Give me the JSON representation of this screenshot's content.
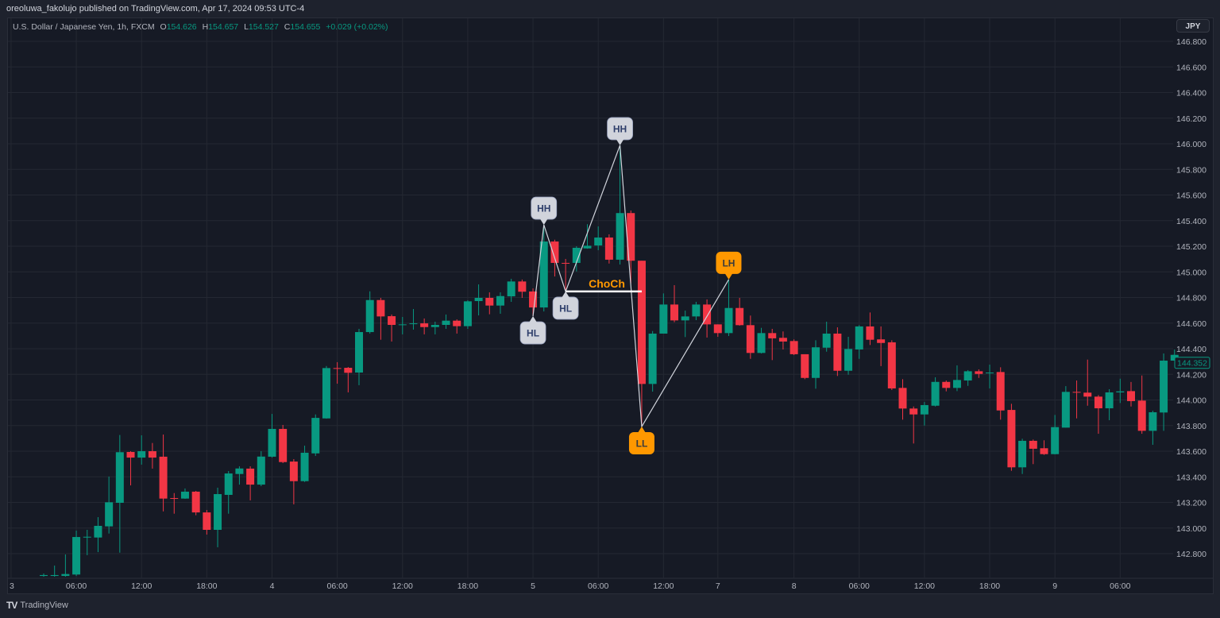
{
  "header": {
    "published": "oreoluwa_fakolujo published on TradingView.com, Apr 17, 2024 09:53 UTC-4"
  },
  "legend": {
    "symbol": "U.S. Dollar / Japanese Yen, 1h, FXCM",
    "open_label": "O",
    "open": "154.626",
    "high_label": "H",
    "high": "154.657",
    "low_label": "L",
    "low": "154.527",
    "close_label": "C",
    "close": "154.655",
    "change": "+0.029 (+0.02%)"
  },
  "currency_button": "JPY",
  "footer": {
    "brand": "TradingView",
    "logo_icon": "tradingview-logo-icon"
  },
  "colors": {
    "up": "#089981",
    "down": "#f23645",
    "label_light": "#d1d4dc",
    "label_orange": "#ff9800",
    "background": "#161a25"
  },
  "chart_data": {
    "type": "candlestick",
    "price_axis": {
      "min": 142.8,
      "max": 146.8,
      "step": 0.2,
      "ticks": [
        "146.800",
        "146.600",
        "146.400",
        "146.200",
        "146.000",
        "145.800",
        "145.600",
        "145.400",
        "145.200",
        "145.000",
        "144.800",
        "144.600",
        "144.400",
        "144.200",
        "144.000",
        "143.800",
        "143.600",
        "143.400",
        "143.200",
        "143.000",
        "142.800"
      ]
    },
    "last_price": "144.352",
    "time_labels": [
      {
        "label": "3",
        "index": -3
      },
      {
        "label": "06:00",
        "index": 3
      },
      {
        "label": "12:00",
        "index": 9
      },
      {
        "label": "18:00",
        "index": 15
      },
      {
        "label": "4",
        "index": 21
      },
      {
        "label": "06:00",
        "index": 27
      },
      {
        "label": "12:00",
        "index": 33
      },
      {
        "label": "18:00",
        "index": 39
      },
      {
        "label": "5",
        "index": 45
      },
      {
        "label": "06:00",
        "index": 51
      },
      {
        "label": "12:00",
        "index": 57
      },
      {
        "label": "7",
        "index": 62
      },
      {
        "label": "8",
        "index": 69
      },
      {
        "label": "06:00",
        "index": 75
      },
      {
        "label": "12:00",
        "index": 81
      },
      {
        "label": "18:00",
        "index": 87
      },
      {
        "label": "9",
        "index": 93
      },
      {
        "label": "06:00",
        "index": 99
      }
    ],
    "grid": true,
    "candles_ohlc": [
      [
        142.626,
        142.645,
        142.62,
        142.633
      ],
      [
        142.626,
        142.707,
        142.62,
        142.633
      ],
      [
        142.626,
        142.794,
        142.62,
        142.641
      ],
      [
        142.637,
        142.98,
        142.626,
        142.93
      ],
      [
        142.93,
        142.986,
        142.788,
        142.932
      ],
      [
        142.926,
        143.085,
        142.812,
        143.017
      ],
      [
        143.013,
        143.402,
        142.957,
        143.201
      ],
      [
        143.197,
        143.726,
        142.808,
        143.592
      ],
      [
        143.594,
        143.6,
        143.333,
        143.55
      ],
      [
        143.55,
        143.724,
        143.495,
        143.6
      ],
      [
        143.6,
        143.664,
        143.464,
        143.55
      ],
      [
        143.557,
        143.73,
        143.13,
        143.23
      ],
      [
        143.234,
        143.273,
        143.112,
        143.228
      ],
      [
        143.23,
        143.309,
        143.228,
        143.284
      ],
      [
        143.284,
        143.29,
        143.1,
        143.122
      ],
      [
        143.122,
        143.141,
        142.949,
        142.986
      ],
      [
        142.986,
        143.315,
        142.85,
        143.265
      ],
      [
        143.259,
        143.445,
        143.112,
        143.426
      ],
      [
        143.422,
        143.482,
        143.339,
        143.465
      ],
      [
        143.464,
        143.482,
        143.216,
        143.339
      ],
      [
        143.339,
        143.6,
        143.327,
        143.558
      ],
      [
        143.557,
        143.891,
        143.55,
        143.774
      ],
      [
        143.774,
        143.805,
        143.507,
        143.515
      ],
      [
        143.519,
        143.538,
        143.185,
        143.366
      ],
      [
        143.366,
        143.643,
        143.36,
        143.588
      ],
      [
        143.583,
        143.887,
        143.563,
        143.86
      ],
      [
        143.856,
        144.265,
        143.854,
        144.249
      ],
      [
        144.249,
        144.295,
        144.127,
        144.247
      ],
      [
        144.251,
        144.257,
        144.059,
        144.212
      ],
      [
        144.214,
        144.555,
        144.115,
        144.53
      ],
      [
        144.53,
        144.848,
        144.518,
        144.78
      ],
      [
        144.78,
        144.797,
        144.47,
        144.652
      ],
      [
        144.654,
        144.667,
        144.456,
        144.586
      ],
      [
        144.586,
        144.648,
        144.512,
        144.59
      ],
      [
        144.597,
        144.71,
        144.549,
        144.598
      ],
      [
        144.598,
        144.636,
        144.512,
        144.569
      ],
      [
        144.569,
        144.611,
        144.512,
        144.586
      ],
      [
        144.586,
        144.667,
        144.555,
        144.619
      ],
      [
        144.619,
        144.629,
        144.518,
        144.576
      ],
      [
        144.576,
        144.778,
        144.555,
        144.77
      ],
      [
        144.772,
        144.902,
        144.66,
        144.797
      ],
      [
        144.797,
        144.84,
        144.669,
        144.737
      ],
      [
        144.737,
        144.84,
        144.673,
        144.811
      ],
      [
        144.809,
        144.946,
        144.766,
        144.925
      ],
      [
        144.925,
        144.94,
        144.797,
        144.845
      ],
      [
        144.847,
        144.871,
        144.654,
        144.722
      ],
      [
        144.722,
        145.367,
        144.691,
        145.237
      ],
      [
        145.237,
        145.251,
        144.964,
        145.07
      ],
      [
        145.07,
        145.101,
        144.847,
        145.067
      ],
      [
        145.07,
        145.2,
        145.003,
        145.188
      ],
      [
        145.183,
        145.372,
        145.181,
        145.204
      ],
      [
        145.206,
        145.355,
        145.169,
        145.268
      ],
      [
        145.268,
        145.293,
        145.065,
        145.095
      ],
      [
        145.095,
        145.988,
        145.057,
        145.459
      ],
      [
        145.459,
        145.479,
        144.91,
        145.087
      ],
      [
        145.087,
        145.087,
        143.792,
        144.125
      ],
      [
        144.125,
        144.538,
        144.065,
        144.518
      ],
      [
        144.518,
        144.832,
        144.518,
        144.745
      ],
      [
        144.745,
        144.896,
        144.607,
        144.621
      ],
      [
        144.621,
        144.698,
        144.491,
        144.652
      ],
      [
        144.652,
        144.766,
        144.623,
        144.745
      ],
      [
        144.745,
        144.785,
        144.487,
        144.59
      ],
      [
        144.59,
        144.59,
        144.493,
        144.522
      ],
      [
        144.522,
        144.94,
        144.499,
        144.718
      ],
      [
        144.718,
        144.797,
        144.58,
        144.584
      ],
      [
        144.584,
        144.659,
        144.321,
        144.367
      ],
      [
        144.367,
        144.563,
        144.363,
        144.522
      ],
      [
        144.522,
        144.555,
        144.311,
        144.481
      ],
      [
        144.485,
        144.535,
        144.394,
        144.456
      ],
      [
        144.46,
        144.473,
        144.35,
        144.357
      ],
      [
        144.357,
        144.357,
        144.162,
        144.172
      ],
      [
        144.172,
        144.466,
        144.088,
        144.411
      ],
      [
        144.408,
        144.611,
        144.377,
        144.518
      ],
      [
        144.518,
        144.567,
        144.187,
        144.228
      ],
      [
        144.228,
        144.493,
        144.197,
        144.398
      ],
      [
        144.394,
        144.584,
        144.321,
        144.574
      ],
      [
        144.574,
        144.683,
        144.429,
        144.47
      ],
      [
        144.473,
        144.574,
        144.264,
        144.445
      ],
      [
        144.45,
        144.466,
        144.078,
        144.09
      ],
      [
        144.094,
        144.162,
        143.846,
        143.933
      ],
      [
        143.933,
        143.949,
        143.66,
        143.887
      ],
      [
        143.887,
        143.984,
        143.8,
        143.96
      ],
      [
        143.955,
        144.177,
        143.949,
        144.141
      ],
      [
        144.141,
        144.152,
        144.067,
        144.094
      ],
      [
        144.094,
        144.27,
        144.069,
        144.156
      ],
      [
        144.152,
        144.233,
        144.11,
        144.224
      ],
      [
        144.224,
        144.239,
        144.172,
        144.203
      ],
      [
        144.211,
        144.276,
        144.09,
        144.214
      ],
      [
        144.218,
        144.255,
        143.846,
        143.918
      ],
      [
        143.922,
        143.97,
        143.447,
        143.474
      ],
      [
        143.474,
        143.697,
        143.422,
        143.681
      ],
      [
        143.681,
        143.691,
        143.499,
        143.619
      ],
      [
        143.623,
        143.685,
        143.571,
        143.577
      ],
      [
        143.577,
        143.883,
        143.575,
        143.788
      ],
      [
        143.784,
        144.108,
        143.784,
        144.063
      ],
      [
        144.063,
        144.152,
        143.856,
        144.06
      ],
      [
        144.057,
        144.315,
        143.955,
        144.026
      ],
      [
        144.026,
        144.038,
        143.736,
        143.935
      ],
      [
        143.935,
        144.084,
        143.842,
        144.059
      ],
      [
        144.059,
        144.166,
        143.976,
        144.067
      ],
      [
        144.069,
        144.14,
        143.949,
        143.991
      ],
      [
        143.995,
        144.191,
        143.736,
        143.759
      ],
      [
        143.759,
        143.916,
        143.65,
        143.904
      ],
      [
        143.902,
        144.363,
        143.759,
        144.307
      ],
      [
        144.307,
        144.394,
        144.307,
        144.352
      ]
    ],
    "structure_labels": [
      {
        "text": "HL",
        "index": 45,
        "price": 144.654,
        "position": "below",
        "style": "light"
      },
      {
        "text": "HH",
        "index": 46,
        "price": 145.367,
        "position": "above",
        "style": "light"
      },
      {
        "text": "HL",
        "index": 48,
        "price": 144.847,
        "position": "below",
        "style": "light"
      },
      {
        "text": "HH",
        "index": 53,
        "price": 145.988,
        "position": "above",
        "style": "light"
      },
      {
        "text": "LL",
        "index": 55,
        "price": 143.792,
        "position": "below",
        "style": "orange"
      },
      {
        "text": "LH",
        "index": 63,
        "price": 144.94,
        "position": "above",
        "style": "orange"
      }
    ],
    "choch": {
      "text": "ChoCh",
      "price": 144.847,
      "from_index": 48,
      "to_index": 55
    }
  }
}
